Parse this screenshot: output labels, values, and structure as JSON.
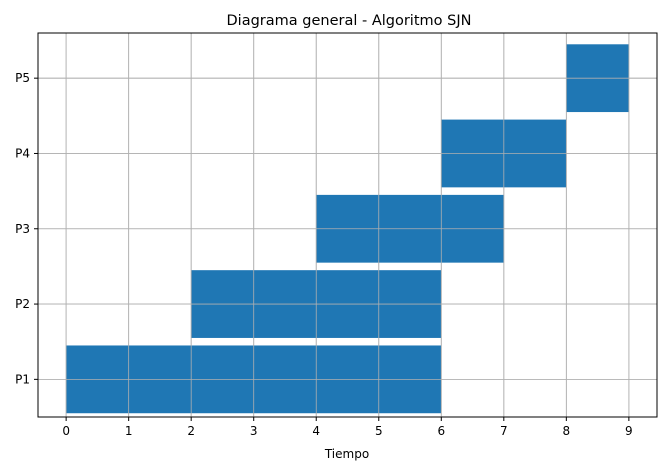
{
  "chart_data": {
    "type": "gantt",
    "title": "Diagrama general - Algoritmo SJN",
    "xlabel": "Tiempo",
    "ylabel": "",
    "xlim": [
      -0.45,
      9.45
    ],
    "xticks": [
      0,
      1,
      2,
      3,
      4,
      5,
      6,
      7,
      8,
      9
    ],
    "categories": [
      "P1",
      "P2",
      "P3",
      "P4",
      "P5"
    ],
    "grid": true,
    "bar_color": "#1f77b4",
    "tasks": [
      {
        "name": "P1",
        "start": 0,
        "end": 6
      },
      {
        "name": "P2",
        "start": 2,
        "end": 6
      },
      {
        "name": "P3",
        "start": 4,
        "end": 7
      },
      {
        "name": "P4",
        "start": 6,
        "end": 8
      },
      {
        "name": "P5",
        "start": 8,
        "end": 9
      }
    ]
  }
}
